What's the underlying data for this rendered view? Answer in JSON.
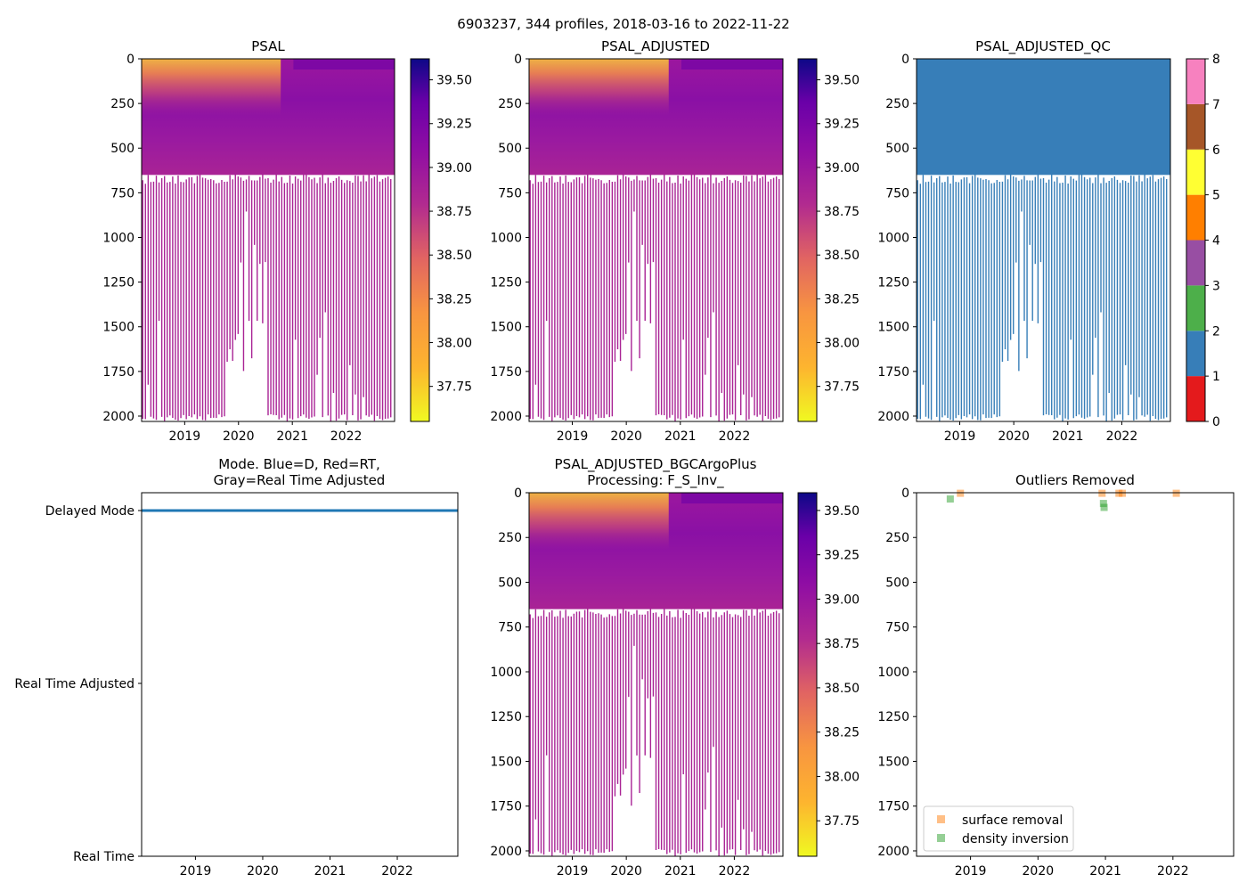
{
  "figure": {
    "suptitle": "6903237, 344 profiles, 2018-03-16 to 2022-11-22",
    "colors": {
      "axis": "#000000",
      "mode_line": "#1f77b4",
      "qc_profile": "#377eb8",
      "surface_removal": "#ff7f0e",
      "density_inversion": "#2ca02c",
      "bg": "#ffffff"
    }
  },
  "chart_data": [
    {
      "id": "psal",
      "type": "heatmap",
      "title": "PSAL",
      "xlim": [
        2018.2,
        2022.9
      ],
      "ylim": [
        2030,
        0
      ],
      "xticks": [
        2019,
        2020,
        2021,
        2022
      ],
      "yticks": [
        0,
        250,
        500,
        750,
        1000,
        1250,
        1500,
        1750,
        2000
      ],
      "colormap": "plasma_r",
      "clim": [
        37.55,
        39.62
      ],
      "colorbar_ticks": [
        37.75,
        38.0,
        38.25,
        38.5,
        38.75,
        39.0,
        39.25,
        39.5
      ]
    },
    {
      "id": "psal_adj",
      "type": "heatmap",
      "title": "PSAL_ADJUSTED",
      "xlim": [
        2018.2,
        2022.9
      ],
      "ylim": [
        2030,
        0
      ],
      "xticks": [
        2019,
        2020,
        2021,
        2022
      ],
      "yticks": [
        0,
        250,
        500,
        750,
        1000,
        1250,
        1500,
        1750,
        2000
      ],
      "colormap": "plasma_r",
      "clim": [
        37.55,
        39.62
      ],
      "colorbar_ticks": [
        37.75,
        38.0,
        38.25,
        38.5,
        38.75,
        39.0,
        39.25,
        39.5
      ]
    },
    {
      "id": "psal_adj_qc",
      "type": "heatmap",
      "title": "PSAL_ADJUSTED_QC",
      "xlim": [
        2018.2,
        2022.9
      ],
      "ylim": [
        2030,
        0
      ],
      "xticks": [
        2019,
        2020,
        2021,
        2022
      ],
      "yticks": [
        0,
        250,
        500,
        750,
        1000,
        1250,
        1500,
        1750,
        2000
      ],
      "colormap": "qc",
      "clim": [
        0,
        8
      ],
      "colorbar_ticks": [
        0,
        1,
        2,
        3,
        4,
        5,
        6,
        7,
        8
      ],
      "qc_colors": [
        "#e41a1c",
        "#377eb8",
        "#4daf4a",
        "#984ea3",
        "#ff7f00",
        "#ffff33",
        "#a65628",
        "#f781bf",
        "#999999"
      ]
    },
    {
      "id": "mode",
      "type": "line",
      "title": "Mode. Blue=D, Red=RT,",
      "title2": "Gray=Real Time Adjusted",
      "xlim": [
        2018.2,
        2022.9
      ],
      "xticks": [
        2019,
        2020,
        2021,
        2022
      ],
      "ylabels": [
        "Delayed Mode",
        "Real Time Adjusted",
        "Real Time"
      ],
      "series": [
        {
          "name": "Delayed Mode",
          "x": [
            2018.2,
            2022.9
          ],
          "y": [
            2,
            2
          ]
        }
      ]
    },
    {
      "id": "psal_bgc",
      "type": "heatmap",
      "title": "PSAL_ADJUSTED_BGCArgoPlus",
      "title2": "Processing: F_S_Inv_",
      "xlim": [
        2018.2,
        2022.9
      ],
      "ylim": [
        2030,
        0
      ],
      "xticks": [
        2019,
        2020,
        2021,
        2022
      ],
      "yticks": [
        0,
        250,
        500,
        750,
        1000,
        1250,
        1500,
        1750,
        2000
      ],
      "colormap": "plasma_r",
      "clim": [
        37.55,
        39.6
      ],
      "colorbar_ticks": [
        37.75,
        38.0,
        38.25,
        38.5,
        38.75,
        39.0,
        39.25,
        39.5
      ]
    },
    {
      "id": "outliers",
      "type": "scatter",
      "title": "Outliers Removed",
      "xlim": [
        2018.2,
        2022.9
      ],
      "ylim": [
        2030,
        0
      ],
      "xticks": [
        2019,
        2020,
        2021,
        2022
      ],
      "yticks": [
        0,
        250,
        500,
        750,
        1000,
        1250,
        1500,
        1750,
        2000
      ],
      "legend": [
        "surface removal",
        "density inversion"
      ],
      "series": [
        {
          "name": "surface removal",
          "x": [
            2018.85,
            2020.95,
            2021.2,
            2021.25,
            2022.05
          ],
          "y": [
            3,
            3,
            3,
            3,
            3
          ]
        },
        {
          "name": "density inversion",
          "x": [
            2018.7,
            2020.97,
            2020.98
          ],
          "y": [
            35,
            60,
            82
          ]
        }
      ]
    }
  ]
}
